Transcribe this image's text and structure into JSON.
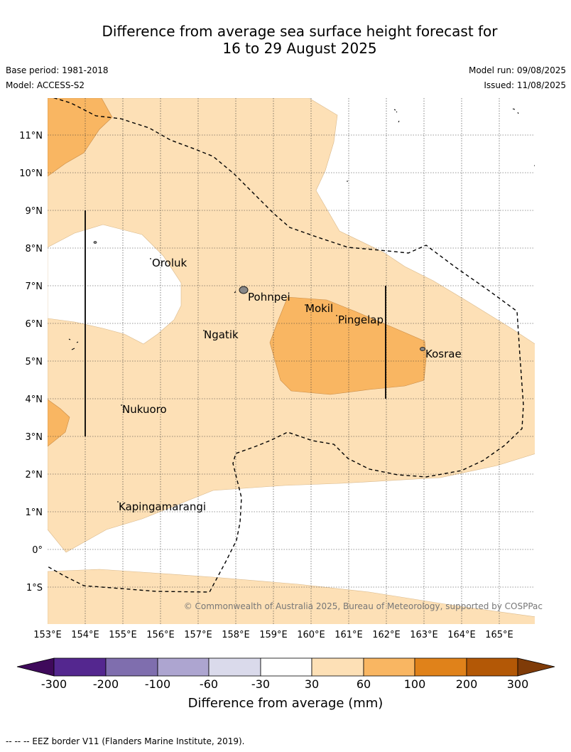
{
  "title": {
    "line1": "Difference from average sea surface height forecast for",
    "line2": "16 to 29 August 2025"
  },
  "meta": {
    "base_period": "Base period: 1981-2018",
    "model": "Model: ACCESS-S2",
    "model_run": "Model run: 09/08/2025",
    "issued": "Issued: 11/08/2025"
  },
  "map": {
    "lon_labels": [
      "153°E",
      "154°E",
      "155°E",
      "156°E",
      "157°E",
      "158°E",
      "159°E",
      "160°E",
      "161°E",
      "162°E",
      "163°E",
      "164°E",
      "165°E"
    ],
    "lat_labels": [
      "11°N",
      "10°N",
      "9°N",
      "8°N",
      "7°N",
      "6°N",
      "5°N",
      "4°N",
      "3°N",
      "2°N",
      "1°N",
      "0°",
      "1°S"
    ],
    "places": {
      "oroluk": "Oroluk",
      "pohnpei": "Pohnpei",
      "mokil": "Mokil",
      "pingelap": "Pingelap",
      "ngatik": "Ngatik",
      "kosrae": "Kosrae",
      "nukuoro": "Nukuoro",
      "kapingamarangi": "Kapingamarangi"
    },
    "copyright": "© Commonwealth of Australia 2025, Bureau of Meteorology, supported by COSPPac",
    "colors": {
      "band_30_60": "#fde0b6",
      "band_60_100": "#f9b662",
      "neutral": "#ffffff"
    }
  },
  "colorbar": {
    "title": "Difference from average (mm)",
    "ticks": [
      "-300",
      "-200",
      "-100",
      "-60",
      "-30",
      "30",
      "60",
      "100",
      "200",
      "300"
    ],
    "colors": [
      "#3f0a5b",
      "#54278f",
      "#7f6eae",
      "#ada5d0",
      "#dadaeb",
      "#ffffff",
      "#fde0b6",
      "#f9b662",
      "#e0821a",
      "#b35806",
      "#7f3b08"
    ]
  },
  "footnote": "--  --  -- EEZ border V11 (Flanders Marine Institute, 2019)."
}
